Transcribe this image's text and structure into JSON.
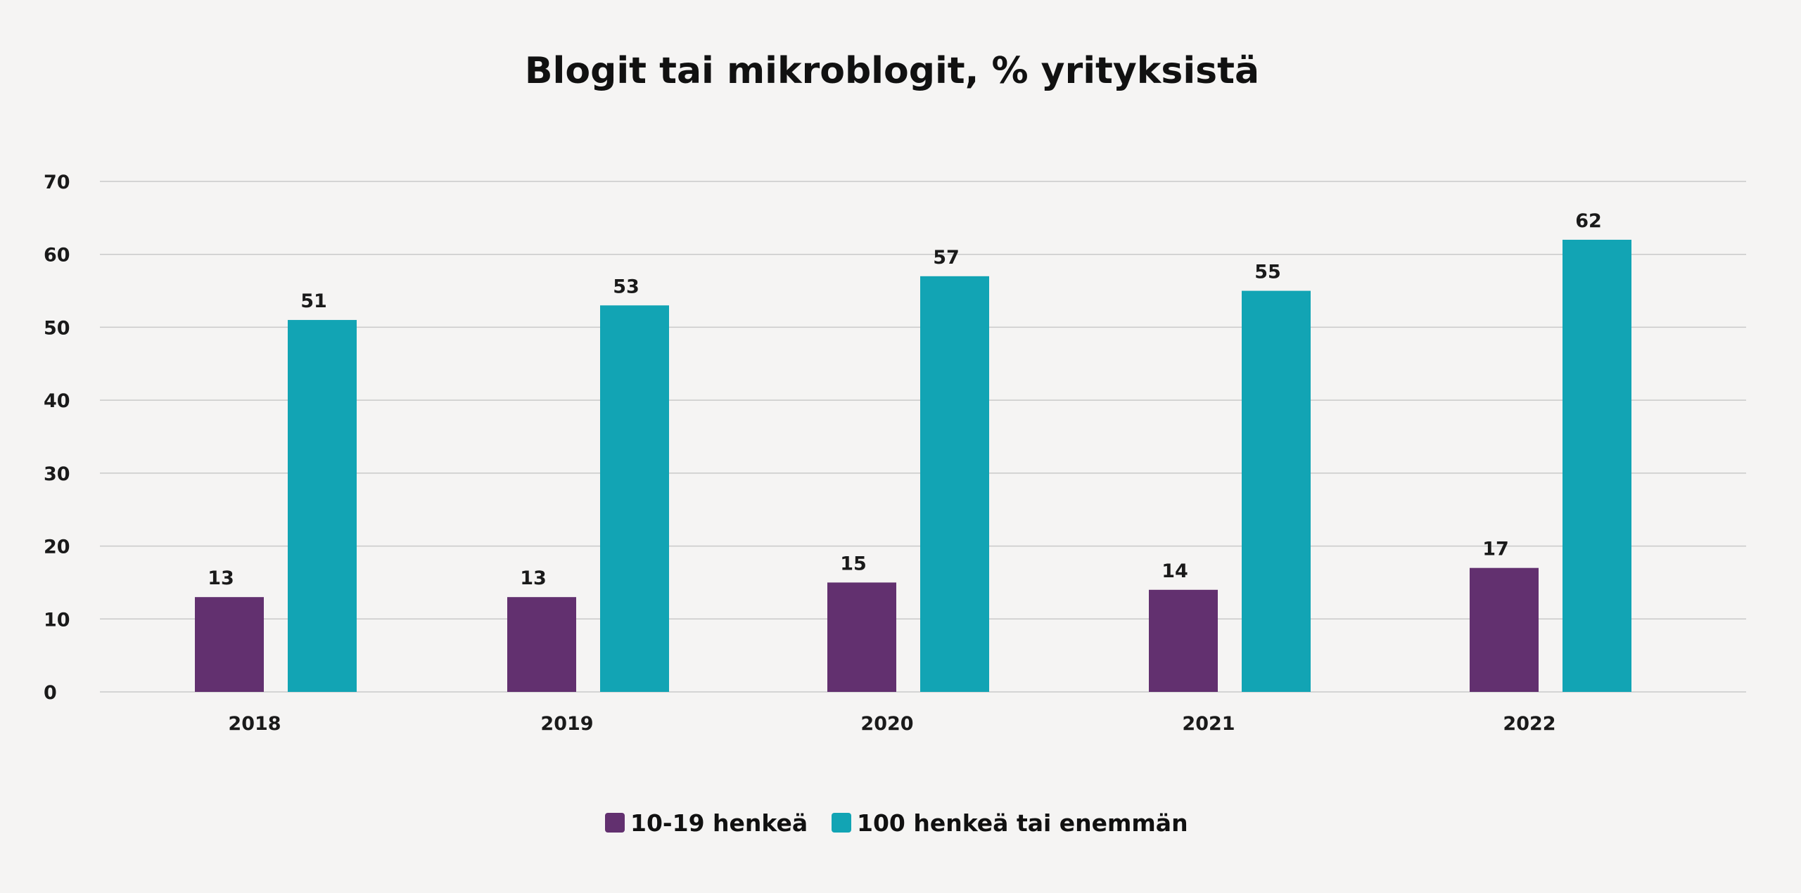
{
  "chart_data": {
    "type": "bar",
    "title": "Blogit tai mikroblogit, % yrityksistä",
    "xlabel": "",
    "ylabel": "",
    "categories": [
      "2018",
      "2019",
      "2020",
      "2021",
      "2022"
    ],
    "series": [
      {
        "name": "10-19 henkeä",
        "color": "#62306f",
        "values": [
          13,
          13,
          15,
          14,
          17
        ]
      },
      {
        "name": "100 henkeä tai enemmän",
        "color": "#12a4b4",
        "values": [
          51,
          53,
          57,
          55,
          62
        ]
      }
    ],
    "ylim": [
      0,
      70
    ],
    "yticks": [
      0,
      10,
      20,
      30,
      40,
      50,
      60,
      70
    ],
    "grid": true,
    "legend": "bottom-center",
    "data_labels": true
  }
}
